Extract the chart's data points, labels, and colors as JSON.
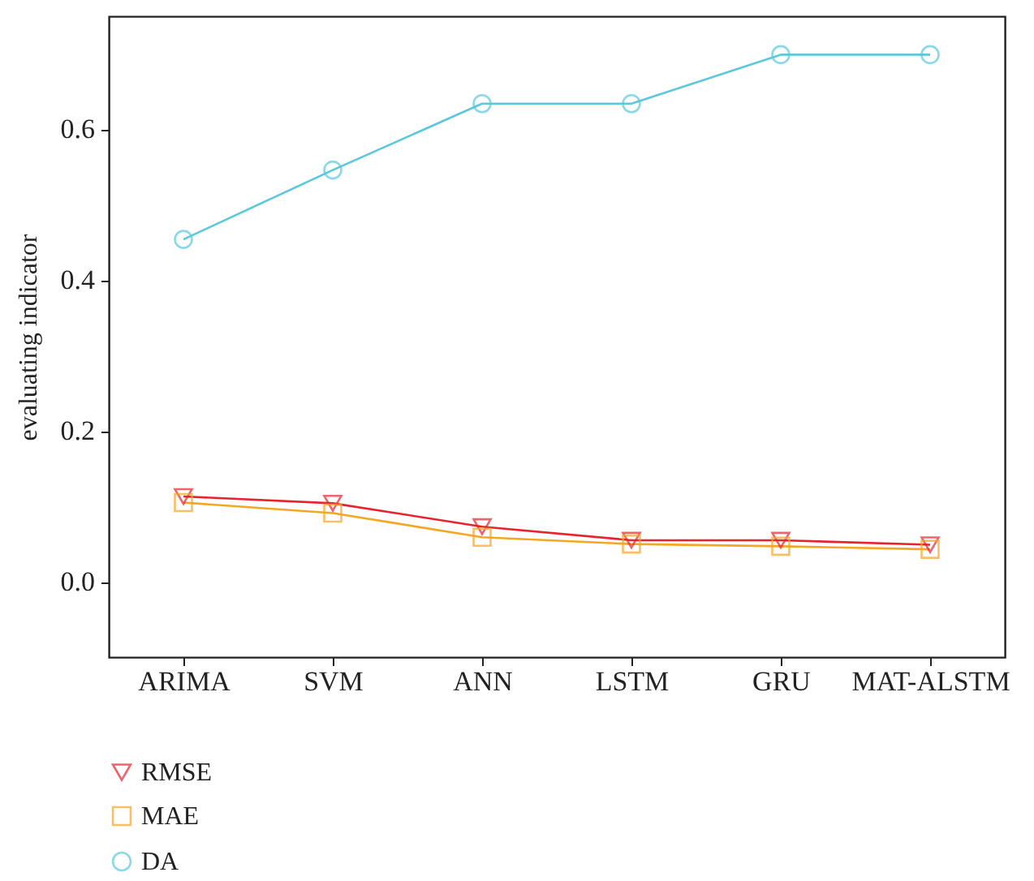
{
  "chart_data": {
    "type": "line",
    "ylabel": "evaluating indicator",
    "categories": [
      "ARIMA",
      "SVM",
      "ANN",
      "LSTM",
      "GRU",
      "MAT-ALSTM"
    ],
    "series": [
      {
        "name": "RMSE",
        "color": "#e8232e",
        "marker": "triangle-down",
        "values": [
          0.113,
          0.104,
          0.073,
          0.055,
          0.055,
          0.049
        ]
      },
      {
        "name": "MAE",
        "color": "#f5a623",
        "marker": "square",
        "values": [
          0.105,
          0.091,
          0.059,
          0.05,
          0.047,
          0.043
        ]
      },
      {
        "name": "DA",
        "color": "#5bc8dc",
        "marker": "circle",
        "values": [
          0.454,
          0.546,
          0.634,
          0.634,
          0.699,
          0.699
        ]
      }
    ],
    "ylim": [
      -0.1,
      0.75
    ],
    "yticks": [
      {
        "value": 0,
        "label": "0.0"
      },
      {
        "value": 0.2,
        "label": "0.2"
      },
      {
        "value": 0.4,
        "label": "0.4"
      },
      {
        "value": 0.6,
        "label": "0.6"
      }
    ],
    "grid": false,
    "legend": "bottom left"
  }
}
